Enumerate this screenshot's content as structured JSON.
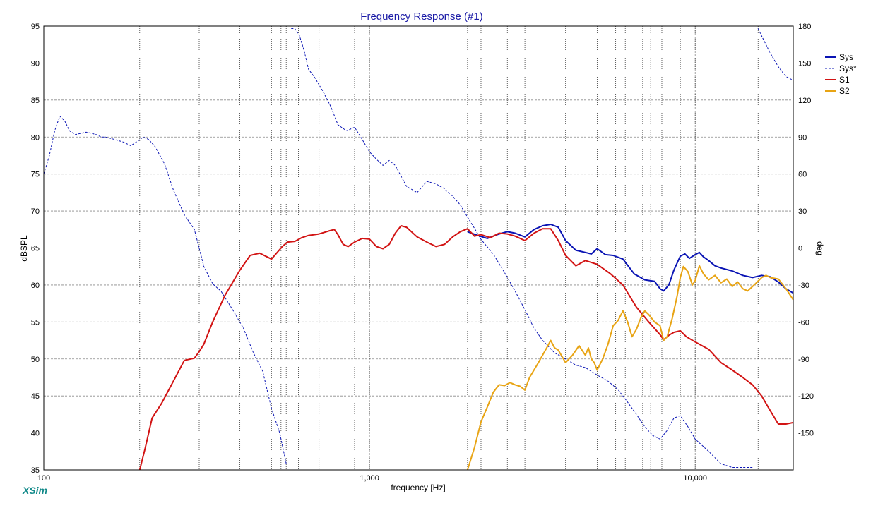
{
  "app": {
    "brand": "XSim"
  },
  "chart_data": {
    "type": "line",
    "title": "Frequency Response (#1)",
    "xlabel": "frequency [Hz]",
    "ylabel": "dBSPL",
    "y2label": "deg",
    "x_scale": "log",
    "xlim": [
      100,
      20000
    ],
    "ylim": [
      35,
      95
    ],
    "y2lim": [
      -180,
      180
    ],
    "grid": true,
    "legend_position": "top-right",
    "x_tick_labels": [
      {
        "value": 100,
        "label": "100"
      },
      {
        "value": 1000,
        "label": "1,000"
      },
      {
        "value": 10000,
        "label": "10,000"
      }
    ],
    "y_tick_labels": [
      "35",
      "40",
      "45",
      "50",
      "55",
      "60",
      "65",
      "70",
      "75",
      "80",
      "85",
      "90",
      "95"
    ],
    "y2_tick_labels": [
      "-150",
      "-120",
      "-90",
      "-60",
      "-30",
      "0",
      "30",
      "60",
      "90",
      "120",
      "150",
      "180"
    ],
    "y_ticks": [
      35,
      40,
      45,
      50,
      55,
      60,
      65,
      70,
      75,
      80,
      85,
      90,
      95
    ],
    "y2_ticks": [
      -150,
      -120,
      -90,
      -60,
      -30,
      0,
      30,
      60,
      90,
      120,
      150,
      180
    ],
    "series": [
      {
        "name": "Sys",
        "axis": "left",
        "color": "#0a14b4",
        "style": "solid",
        "x": [
          2000,
          2150,
          2300,
          2500,
          2650,
          2800,
          3000,
          3200,
          3400,
          3600,
          3800,
          4000,
          4300,
          4600,
          4800,
          5000,
          5300,
          5600,
          6000,
          6500,
          7000,
          7500,
          7800,
          8000,
          8300,
          8600,
          9000,
          9300,
          9600,
          10000,
          10300,
          10600,
          11000,
          11500,
          12000,
          13000,
          14000,
          15000,
          16000,
          17000,
          18000,
          19000,
          20000
        ],
        "y": [
          67.2,
          66.7,
          66.3,
          66.9,
          67.2,
          67.0,
          66.5,
          67.5,
          68.0,
          68.2,
          67.8,
          66.0,
          64.7,
          64.4,
          64.2,
          64.9,
          64.1,
          64.0,
          63.5,
          61.5,
          60.7,
          60.5,
          59.5,
          59.2,
          60.0,
          62.0,
          63.9,
          64.2,
          63.6,
          64.1,
          64.4,
          63.8,
          63.3,
          62.6,
          62.3,
          61.9,
          61.3,
          61.0,
          61.3,
          61.1,
          60.4,
          59.5,
          58.9
        ]
      },
      {
        "name": "Sys°",
        "axis": "right",
        "color": "#0a14b4",
        "style": "dashed",
        "x": [
          100,
          104,
          108,
          112,
          116,
          120,
          125,
          130,
          135,
          140,
          145,
          150,
          155,
          165,
          175,
          185,
          195,
          202,
          210,
          220,
          235,
          250,
          270,
          290,
          310,
          330,
          350,
          380,
          410,
          440,
          470,
          500,
          530,
          555,
          566,
          575,
          590,
          610,
          630,
          650,
          680,
          720,
          760,
          800,
          850,
          900,
          950,
          1000,
          1050,
          1100,
          1150,
          1200,
          1300,
          1400,
          1500,
          1600,
          1700,
          1800,
          1900,
          2000,
          2100,
          2200,
          2400,
          2600,
          2800,
          3000,
          3200,
          3400,
          3700,
          4000,
          4300,
          4600,
          5000,
          5400,
          5800,
          6200,
          6600,
          7000,
          7400,
          7800,
          8200,
          8600,
          9000,
          9500,
          10000,
          11000,
          12000,
          13000,
          14000,
          15000,
          15400,
          15600,
          16000,
          17000,
          18000,
          19000,
          20000
        ],
        "y": [
          60,
          75,
          95,
          107,
          103,
          95,
          92,
          93,
          94,
          93,
          92,
          90,
          90,
          88,
          86,
          83,
          87,
          90,
          88,
          82,
          68,
          47,
          27,
          15,
          -15,
          -29,
          -35,
          -50,
          -65,
          -85,
          -100,
          -130,
          -150,
          -175,
          -5,
          178,
          178,
          172,
          160,
          145,
          138,
          127,
          115,
          100,
          95,
          98,
          88,
          78,
          72,
          67,
          71,
          67,
          50,
          45,
          54,
          52,
          48,
          42,
          35,
          25,
          16,
          7,
          -5,
          -20,
          -35,
          -50,
          -65,
          -75,
          -85,
          -90,
          -95,
          -97,
          -103,
          -108,
          -115,
          -125,
          -135,
          -145,
          -152,
          -155,
          -148,
          -138,
          -136,
          -145,
          -155,
          -165,
          -175,
          -178,
          -178,
          -178,
          -2,
          178,
          172,
          158,
          147,
          139,
          136
        ]
      },
      {
        "name": "S1",
        "axis": "left",
        "color": "#d21414",
        "style": "solid",
        "x": [
          197,
          205,
          215,
          230,
          250,
          270,
          290,
          300,
          310,
          330,
          360,
          400,
          430,
          460,
          500,
          540,
          560,
          590,
          620,
          650,
          700,
          750,
          780,
          800,
          830,
          860,
          900,
          950,
          1000,
          1050,
          1100,
          1150,
          1200,
          1250,
          1300,
          1400,
          1500,
          1600,
          1700,
          1800,
          1900,
          2000,
          2100,
          2200,
          2350,
          2500,
          2650,
          2800,
          3000,
          3200,
          3400,
          3600,
          3800,
          4000,
          4300,
          4600,
          5000,
          5500,
          6000,
          6600,
          7200,
          7800,
          8000,
          8300,
          8600,
          9000,
          9400,
          10000,
          11000,
          12000,
          13000,
          14000,
          15000,
          16000,
          17000,
          18000,
          19000,
          20000
        ],
        "y": [
          35,
          38,
          42,
          44,
          47,
          49.8,
          50.1,
          51,
          52,
          55,
          58.6,
          62,
          64,
          64.3,
          63.5,
          65.2,
          65.8,
          65.9,
          66.4,
          66.7,
          66.9,
          67.3,
          67.5,
          66.8,
          65.5,
          65.2,
          65.8,
          66.3,
          66.2,
          65.2,
          64.9,
          65.5,
          67,
          68,
          67.8,
          66.5,
          65.8,
          65.2,
          65.5,
          66.5,
          67.2,
          67.6,
          66.6,
          66.8,
          66.4,
          67,
          66.9,
          66.6,
          66,
          67,
          67.6,
          67.6,
          66,
          64,
          62.6,
          63.3,
          62.8,
          61.5,
          60,
          57,
          55,
          53.3,
          52.6,
          53.2,
          53.6,
          53.8,
          53,
          52.3,
          51.3,
          49.5,
          48.5,
          47.5,
          46.5,
          45,
          43,
          41.2,
          41.2,
          41.4
        ]
      },
      {
        "name": "S2",
        "axis": "left",
        "color": "#e8a414",
        "style": "solid",
        "x": [
          2000,
          2100,
          2200,
          2300,
          2400,
          2500,
          2600,
          2700,
          2800,
          2900,
          3000,
          3100,
          3300,
          3500,
          3600,
          3700,
          3800,
          4000,
          4200,
          4400,
          4600,
          4700,
          4800,
          4900,
          5000,
          5200,
          5400,
          5600,
          5800,
          6000,
          6200,
          6400,
          6600,
          6800,
          7000,
          7200,
          7500,
          7800,
          8000,
          8200,
          8500,
          8800,
          9000,
          9200,
          9500,
          9800,
          10000,
          10300,
          10600,
          11000,
          11500,
          12000,
          12500,
          13000,
          13500,
          14000,
          14500,
          15000,
          15500,
          16000,
          16500,
          17000,
          18000,
          19000,
          20000
        ],
        "y": [
          35,
          38,
          41.5,
          43.5,
          45.5,
          46.5,
          46.4,
          46.8,
          46.5,
          46.3,
          45.8,
          47.5,
          49.5,
          51.5,
          52.5,
          51.5,
          51.2,
          49.5,
          50.5,
          51.8,
          50.5,
          51.5,
          50,
          49.5,
          48.5,
          50,
          52,
          54.5,
          55.2,
          56.5,
          55,
          53,
          54,
          55.5,
          56.5,
          56,
          55,
          54.5,
          52.5,
          53,
          55.5,
          58.5,
          61,
          62.5,
          61.8,
          60,
          60.6,
          62.6,
          61.5,
          60.7,
          61.3,
          60.3,
          60.8,
          59.8,
          60.4,
          59.5,
          59.2,
          59.8,
          60.4,
          61,
          61.3,
          61,
          60.8,
          59.5,
          58
        ]
      }
    ],
    "markers_hz": [
      197,
      300,
      400,
      500,
      535,
      555,
      605,
      700,
      800,
      900,
      1000,
      2000,
      2200,
      2650,
      3000,
      4000,
      5000,
      5700,
      6100,
      6900,
      7300,
      7900,
      9000,
      10000,
      15600
    ]
  }
}
